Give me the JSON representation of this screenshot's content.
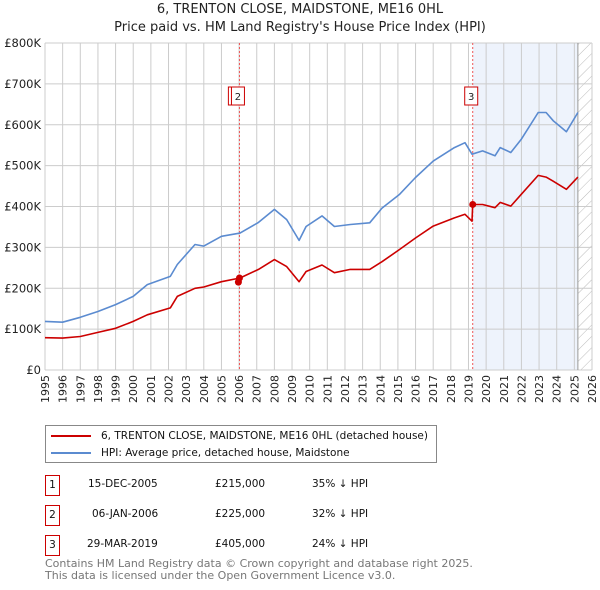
{
  "title": "6, TRENTON CLOSE, MAIDSTONE, ME16 0HL",
  "subtitle": "Price paid vs. HM Land Registry's House Price Index (HPI)",
  "chart_data": {
    "type": "line",
    "title": "6, TRENTON CLOSE, MAIDSTONE, ME16 0HL",
    "subtitle": "Price paid vs. HM Land Registry's House Price Index (HPI)",
    "xlim": [
      1995,
      2026
    ],
    "ylim": [
      0,
      800000
    ],
    "x_ticks": [
      "1995",
      "1996",
      "1997",
      "1998",
      "1999",
      "2000",
      "2001",
      "2002",
      "2003",
      "2004",
      "2005",
      "2006",
      "2007",
      "2008",
      "2009",
      "2010",
      "2011",
      "2012",
      "2013",
      "2014",
      "2015",
      "2016",
      "2017",
      "2018",
      "2019",
      "2020",
      "2021",
      "2022",
      "2023",
      "2024",
      "2025",
      "2026"
    ],
    "y_ticks": [
      {
        "v": 0,
        "label": "£0"
      },
      {
        "v": 100000,
        "label": "£100K"
      },
      {
        "v": 200000,
        "label": "£200K"
      },
      {
        "v": 300000,
        "label": "£300K"
      },
      {
        "v": 400000,
        "label": "£400K"
      },
      {
        "v": 500000,
        "label": "£500K"
      },
      {
        "v": 600000,
        "label": "£600K"
      },
      {
        "v": 700000,
        "label": "£700K"
      },
      {
        "v": 800000,
        "label": "£800K"
      }
    ],
    "grid": true,
    "series": [
      {
        "name": "6, TRENTON CLOSE, MAIDSTONE, ME16 0HL (detached house)",
        "color": "#cc0000",
        "x": [
          1995.0,
          1996.0,
          1997.0,
          1998.0,
          1999.0,
          2000.0,
          2000.8,
          2002.1,
          2002.5,
          2003.5,
          2004.0,
          2005.0,
          2006.05,
          2007.1,
          2008.0,
          2008.7,
          2009.4,
          2009.8,
          2010.7,
          2011.4,
          2012.3,
          2013.4,
          2014.1,
          2015.1,
          2016.0,
          2017.0,
          2018.2,
          2018.8,
          2019.2,
          2019.24,
          2019.8,
          2020.5,
          2020.8,
          2021.4,
          2022.0,
          2022.95,
          2023.4,
          2023.8,
          2024.55,
          2025.2
        ],
        "y": [
          79000,
          78000,
          82000,
          92000,
          102000,
          119000,
          135000,
          152000,
          180000,
          200000,
          203000,
          216000,
          225000,
          246000,
          270000,
          253000,
          216000,
          241000,
          257000,
          238000,
          246000,
          246000,
          265000,
          295000,
          323000,
          352000,
          372000,
          381000,
          364000,
          405000,
          405000,
          397000,
          410000,
          401000,
          430000,
          476000,
          472000,
          462000,
          442000,
          472000
        ]
      },
      {
        "name": "HPI: Average price, detached house, Maidstone",
        "color": "#5b8bd0",
        "x": [
          1995.0,
          1996.0,
          1997.0,
          1998.0,
          1999.0,
          2000.0,
          2000.8,
          2002.1,
          2002.5,
          2003.5,
          2004.0,
          2005.0,
          2006.05,
          2007.1,
          2008.0,
          2008.7,
          2009.4,
          2009.8,
          2010.7,
          2011.4,
          2012.3,
          2013.4,
          2014.1,
          2015.1,
          2016.0,
          2017.0,
          2018.2,
          2018.8,
          2019.2,
          2019.8,
          2020.5,
          2020.8,
          2021.4,
          2022.0,
          2022.95,
          2023.4,
          2023.8,
          2024.55,
          2025.2
        ],
        "y": [
          119000,
          117000,
          129000,
          143000,
          160000,
          180000,
          209000,
          229000,
          258000,
          307000,
          303000,
          327000,
          335000,
          361000,
          393000,
          368000,
          317000,
          351000,
          377000,
          351000,
          356000,
          360000,
          396000,
          430000,
          471000,
          511000,
          544000,
          556000,
          528000,
          536000,
          524000,
          544000,
          532000,
          565000,
          630000,
          630000,
          610000,
          583000,
          630000
        ]
      }
    ],
    "sales": [
      {
        "id": "1",
        "x": 2005.96,
        "price": 215000
      },
      {
        "id": "2",
        "x": 2006.02,
        "price": 225000
      },
      {
        "id": "3",
        "x": 2019.24,
        "price": 405000
      }
    ],
    "shaded_range": [
      2019.24,
      2025.2
    ],
    "forecast_start": 2025.2
  },
  "legend": {
    "items": [
      {
        "label": "6, TRENTON CLOSE, MAIDSTONE, ME16 0HL (detached house)",
        "color": "#cc0000"
      },
      {
        "label": "HPI: Average price, detached house, Maidstone",
        "color": "#5b8bd0"
      }
    ]
  },
  "transactions": [
    {
      "id": "1",
      "date": "15-DEC-2005",
      "price": "£215,000",
      "hpi": "35% ↓ HPI"
    },
    {
      "id": "2",
      "date": "06-JAN-2006",
      "price": "£225,000",
      "hpi": "32% ↓ HPI"
    },
    {
      "id": "3",
      "date": "29-MAR-2019",
      "price": "£405,000",
      "hpi": "24% ↓ HPI"
    }
  ],
  "footer": {
    "line1": "Contains HM Land Registry data © Crown copyright and database right 2025.",
    "line2": "This data is licensed under the Open Government Licence v3.0."
  }
}
